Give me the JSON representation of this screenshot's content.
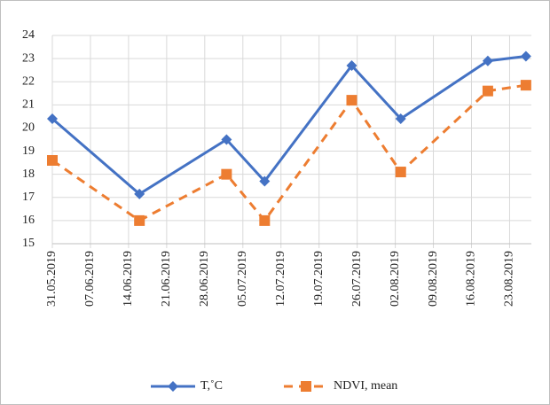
{
  "chart_data": {
    "type": "line",
    "x": [
      "31.05.2019",
      "16.06.2019",
      "02.07.2019",
      "09.07.2019",
      "25.07.2019",
      "03.08.2019",
      "19.08.2019",
      "26.08.2019"
    ],
    "series": [
      {
        "name": "T,˚C",
        "color": "#4472c4",
        "marker": "diamond",
        "dash": false,
        "values": [
          20.4,
          17.15,
          19.5,
          17.7,
          22.7,
          20.4,
          22.9,
          23.1
        ]
      },
      {
        "name": "NDVI, mean",
        "color": "#ed7d31",
        "marker": "square",
        "dash": true,
        "values": [
          18.6,
          16.0,
          18.0,
          16.0,
          21.2,
          18.1,
          21.6,
          21.85
        ]
      }
    ],
    "xlim": [
      "31.05.2019",
      "27.08.2019"
    ],
    "xticks": [
      "31.05.2019",
      "07.06.2019",
      "14.06.2019",
      "21.06.2019",
      "28.06.2019",
      "05.07.2019",
      "12.07.2019",
      "19.07.2019",
      "26.07.2019",
      "02.08.2019",
      "09.08.2019",
      "16.08.2019",
      "23.08.2019"
    ],
    "ylim": [
      15,
      24
    ],
    "yticks": [
      15,
      16,
      17,
      18,
      19,
      20,
      21,
      22,
      23,
      24
    ],
    "grid": true,
    "legend": "bottom"
  }
}
